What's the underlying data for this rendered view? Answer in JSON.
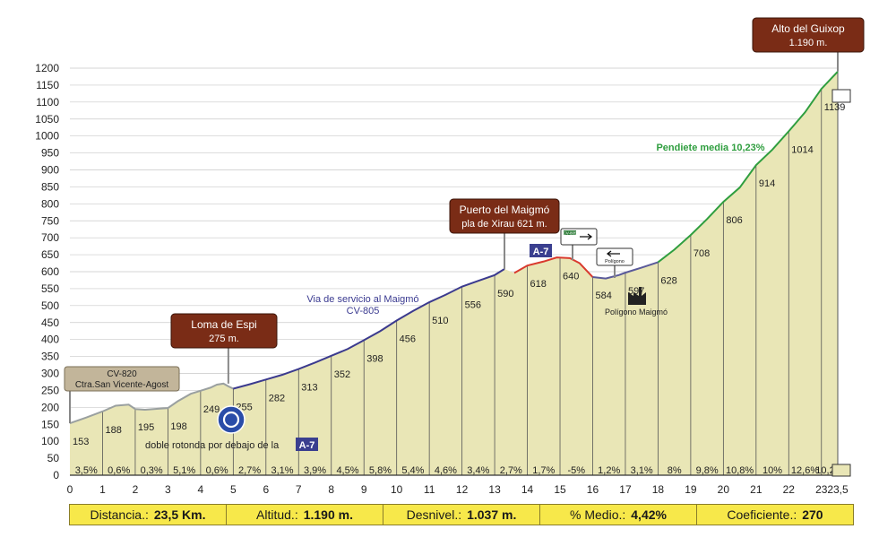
{
  "chart_data": {
    "type": "area",
    "xlabel": "",
    "ylabel": "",
    "xlim": [
      0,
      23.5
    ],
    "ylim": [
      0,
      1200
    ],
    "y_ticks": [
      0,
      50,
      100,
      150,
      200,
      250,
      300,
      350,
      400,
      450,
      500,
      550,
      600,
      650,
      700,
      750,
      800,
      850,
      900,
      950,
      1000,
      1050,
      1100,
      1150,
      1200
    ],
    "x_ticks": [
      {
        "v": 0,
        "label": "0"
      },
      {
        "v": 1,
        "label": "1"
      },
      {
        "v": 2,
        "label": "2"
      },
      {
        "v": 3,
        "label": "3"
      },
      {
        "v": 4,
        "label": "4"
      },
      {
        "v": 5,
        "label": "5"
      },
      {
        "v": 6,
        "label": "6"
      },
      {
        "v": 7,
        "label": "7"
      },
      {
        "v": 8,
        "label": "8"
      },
      {
        "v": 9,
        "label": "9"
      },
      {
        "v": 10,
        "label": "10"
      },
      {
        "v": 11,
        "label": "11"
      },
      {
        "v": 12,
        "label": "12"
      },
      {
        "v": 13,
        "label": "13"
      },
      {
        "v": 14,
        "label": "14"
      },
      {
        "v": 15,
        "label": "15"
      },
      {
        "v": 16,
        "label": "16"
      },
      {
        "v": 17,
        "label": "17"
      },
      {
        "v": 18,
        "label": "18"
      },
      {
        "v": 19,
        "label": "19"
      },
      {
        "v": 20,
        "label": "20"
      },
      {
        "v": 21,
        "label": "21"
      },
      {
        "v": 22,
        "label": "22"
      },
      {
        "v": 23,
        "label": "23"
      },
      {
        "v": 23.5,
        "label": "23,5"
      }
    ],
    "profile": [
      [
        0,
        153
      ],
      [
        0.5,
        170
      ],
      [
        1,
        188
      ],
      [
        1.4,
        205
      ],
      [
        1.8,
        208
      ],
      [
        2,
        195
      ],
      [
        2.3,
        193
      ],
      [
        2.7,
        196
      ],
      [
        3,
        198
      ],
      [
        3.3,
        218
      ],
      [
        3.7,
        240
      ],
      [
        4,
        249
      ],
      [
        4.3,
        258
      ],
      [
        4.5,
        267
      ],
      [
        4.7,
        270
      ],
      [
        4.85,
        262
      ],
      [
        5,
        255
      ],
      [
        5.5,
        268
      ],
      [
        6,
        282
      ],
      [
        6.5,
        296
      ],
      [
        7,
        313
      ],
      [
        7.5,
        332
      ],
      [
        8,
        352
      ],
      [
        8.5,
        372
      ],
      [
        9,
        398
      ],
      [
        9.5,
        425
      ],
      [
        10,
        456
      ],
      [
        10.5,
        484
      ],
      [
        11,
        510
      ],
      [
        11.5,
        532
      ],
      [
        12,
        556
      ],
      [
        12.5,
        573
      ],
      [
        13,
        590
      ],
      [
        13.3,
        608
      ],
      [
        13.6,
        596
      ],
      [
        14,
        618
      ],
      [
        14.5,
        630
      ],
      [
        14.9,
        642
      ],
      [
        15.3,
        640
      ],
      [
        15.6,
        625
      ],
      [
        16,
        584
      ],
      [
        16.4,
        580
      ],
      [
        16.8,
        590
      ],
      [
        17,
        597
      ],
      [
        17.5,
        612
      ],
      [
        18,
        628
      ],
      [
        18.5,
        665
      ],
      [
        19,
        708
      ],
      [
        19.5,
        755
      ],
      [
        20,
        806
      ],
      [
        20.5,
        848
      ],
      [
        21,
        914
      ],
      [
        21.5,
        960
      ],
      [
        22,
        1014
      ],
      [
        22.5,
        1070
      ],
      [
        23,
        1139
      ],
      [
        23.5,
        1190
      ]
    ],
    "segments": [
      {
        "x": [
          0,
          5
        ],
        "color": "#9aa0a0"
      },
      {
        "x": [
          5,
          13.5
        ],
        "color": "#3b3a8e"
      },
      {
        "x": [
          13.5,
          16
        ],
        "color": "#d93a2e"
      },
      {
        "x": [
          16,
          18
        ],
        "color": "#5a5a9a"
      },
      {
        "x": [
          18,
          23.5
        ],
        "color": "#2f9e3f"
      }
    ],
    "km_altitudes": [
      {
        "x": 0,
        "label": "153"
      },
      {
        "x": 1,
        "label": "188"
      },
      {
        "x": 2,
        "label": "195"
      },
      {
        "x": 3,
        "label": "198"
      },
      {
        "x": 4,
        "label": "249"
      },
      {
        "x": 5,
        "label": "255"
      },
      {
        "x": 6,
        "label": "282"
      },
      {
        "x": 7,
        "label": "313"
      },
      {
        "x": 8,
        "label": "352"
      },
      {
        "x": 9,
        "label": "398"
      },
      {
        "x": 10,
        "label": "456"
      },
      {
        "x": 11,
        "label": "510"
      },
      {
        "x": 12,
        "label": "556"
      },
      {
        "x": 13,
        "label": "590"
      },
      {
        "x": 14,
        "label": "618"
      },
      {
        "x": 15,
        "label": "640"
      },
      {
        "x": 16,
        "label": "584"
      },
      {
        "x": 17,
        "label": "597"
      },
      {
        "x": 18,
        "label": "628"
      },
      {
        "x": 19,
        "label": "708"
      },
      {
        "x": 20,
        "label": "806"
      },
      {
        "x": 21,
        "label": "914"
      },
      {
        "x": 22,
        "label": "1014"
      },
      {
        "x": 23,
        "label": "1139"
      }
    ],
    "gradients": [
      {
        "x": 0.5,
        "label": "3,5%"
      },
      {
        "x": 1.5,
        "label": "0,6%"
      },
      {
        "x": 2.5,
        "label": "0,3%"
      },
      {
        "x": 3.5,
        "label": "5,1%"
      },
      {
        "x": 4.5,
        "label": "0,6%"
      },
      {
        "x": 5.5,
        "label": "2,7%"
      },
      {
        "x": 6.5,
        "label": "3,1%"
      },
      {
        "x": 7.5,
        "label": "3,9%"
      },
      {
        "x": 8.5,
        "label": "4,5%"
      },
      {
        "x": 9.5,
        "label": "5,8%"
      },
      {
        "x": 10.5,
        "label": "5,4%"
      },
      {
        "x": 11.5,
        "label": "4,6%"
      },
      {
        "x": 12.5,
        "label": "3,4%"
      },
      {
        "x": 13.5,
        "label": "2,7%"
      },
      {
        "x": 14.5,
        "label": "1,7%"
      },
      {
        "x": 15.5,
        "label": "-5%"
      },
      {
        "x": 16.5,
        "label": "1,2%"
      },
      {
        "x": 17.5,
        "label": "3,1%"
      },
      {
        "x": 18.5,
        "label": "8%"
      },
      {
        "x": 19.5,
        "label": "9,8%"
      },
      {
        "x": 20.5,
        "label": "10,8%"
      },
      {
        "x": 21.5,
        "label": "10%"
      },
      {
        "x": 22.5,
        "label": "12,6%"
      },
      {
        "x": 23.25,
        "label": "10,2%"
      }
    ],
    "annotations": {
      "loma": {
        "line1": "Loma de Espi",
        "line2": "275 m."
      },
      "puerto": {
        "line1": "Puerto del Maigmó",
        "line2": "pla de Xirau  621 m."
      },
      "alto": {
        "line1": "Alto del Guixop",
        "line2": "1.190 m."
      },
      "cv820": {
        "line1": "CV-820",
        "line2": "Ctra.San Vicente-Agost"
      },
      "via": {
        "line1": "Via de servicio al Maigmó",
        "line2": "CV-805"
      },
      "pendiente": "Pendiete media 10,23%",
      "rotonda": "doble rotonda por debajo de la",
      "a7_bottom": "A-7",
      "a7_top": "A-7",
      "poligono_sign": "Polígono",
      "poligono_label": "Polígono Maigmó",
      "cv_sign": "CV-805"
    },
    "colors": {
      "fill": "#e9e6b6",
      "grid": "#c9c9c9",
      "marker_box": "#7a2c16",
      "label_box": "#c2b59a",
      "a7_box": "#3a3f8f",
      "pendiente_text": "#2f9e3f",
      "via_text": "#3a3a90",
      "stats_bg": "#f7e84a"
    }
  },
  "stats": [
    {
      "label": "Distancia.:",
      "value": "23,5 Km."
    },
    {
      "label": "Altitud.:",
      "value": "1.190 m."
    },
    {
      "label": "Desnivel.:",
      "value": "1.037 m."
    },
    {
      "label": "% Medio.:",
      "value": "4,42%"
    },
    {
      "label": "Coeficiente.:",
      "value": "270"
    }
  ]
}
